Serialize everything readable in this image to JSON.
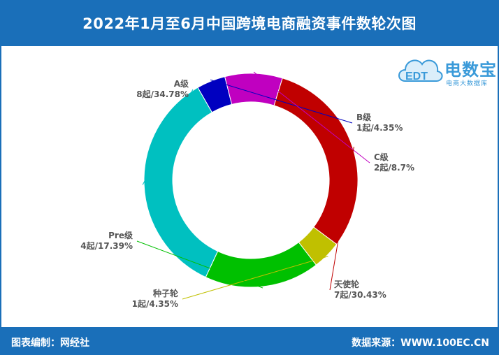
{
  "header": {
    "title": "2022年1月至6月中国跨境电商融资事件数轮次图"
  },
  "footer": {
    "left": "图表编制：网经社",
    "right": "数据来源：WWW.100EC.CN"
  },
  "logo": {
    "brand": "电数宝",
    "sub": "电商大数据库",
    "mark_text": "EDT",
    "icon": "cloud-logo-icon"
  },
  "colors": {
    "header_bg": "#1a6fb9",
    "label_text": "#555555"
  },
  "chart_data": {
    "type": "pie",
    "donut": true,
    "categories": [
      "A级",
      "B级",
      "C级",
      "天使轮",
      "种子轮",
      "Pre级"
    ],
    "values": [
      8,
      1,
      2,
      7,
      1,
      4
    ],
    "labels": [
      {
        "name": "A级",
        "value": "8起/34.78%"
      },
      {
        "name": "B级",
        "value": "1起/4.35%"
      },
      {
        "name": "C级",
        "value": "2起/8.7%"
      },
      {
        "name": "天使轮",
        "value": "7起/30.43%"
      },
      {
        "name": "种子轮",
        "value": "1起/4.35%"
      },
      {
        "name": "Pre级",
        "value": "4起/17.39%"
      }
    ],
    "colors": [
      "#00c0c0",
      "#0000c0",
      "#c000c0",
      "#c00000",
      "#c0c000",
      "#00c000"
    ]
  }
}
